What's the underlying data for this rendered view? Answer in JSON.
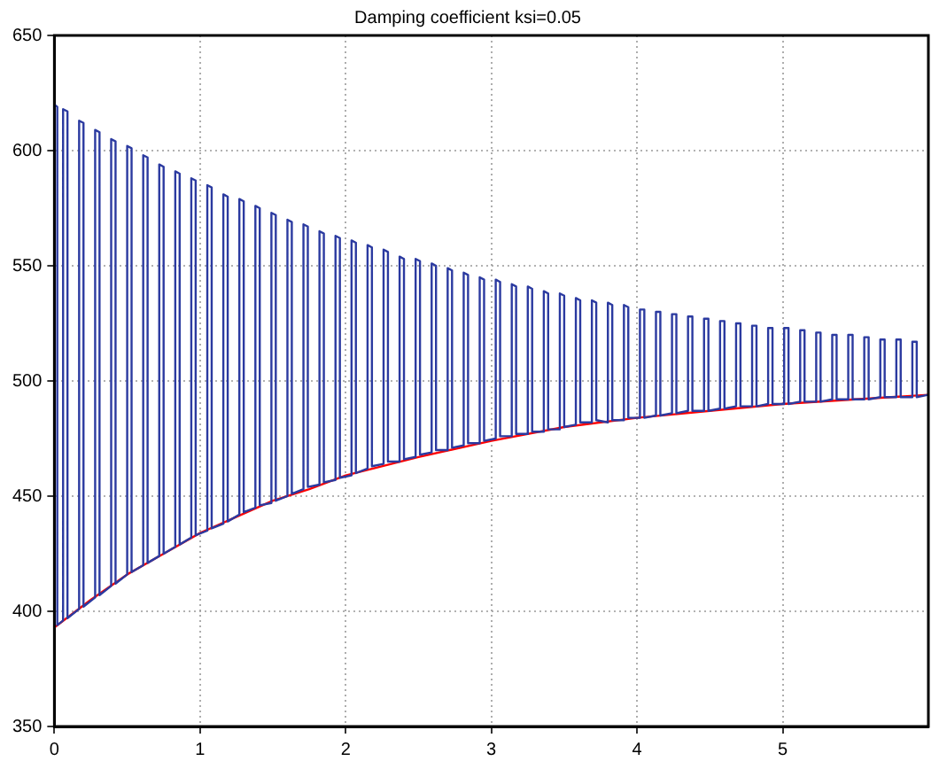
{
  "chart_data": {
    "type": "line",
    "title": "Damping coefficient ksi=0.05",
    "xlim": [
      0,
      6
    ],
    "xticks": [
      0,
      1,
      2,
      3,
      4,
      5
    ],
    "ylim": [
      350,
      650
    ],
    "yticks": [
      350,
      400,
      450,
      500,
      550,
      600,
      650
    ],
    "grid": true,
    "legend": false,
    "marker": "none",
    "line_style": "solid",
    "series": [
      {
        "color": "#2b3aa0",
        "x": [
          0,
          0,
          0.02,
          0.02,
          0.06,
          0.06,
          0.09,
          0.09,
          0.17,
          0.17,
          0.2,
          0.2,
          0.28,
          0.28,
          0.31,
          0.31,
          0.39,
          0.39,
          0.42,
          0.42,
          0.5,
          0.5,
          0.53,
          0.53,
          0.61,
          0.61,
          0.64,
          0.64,
          0.72,
          0.72,
          0.75,
          0.75,
          0.83,
          0.83,
          0.86,
          0.86,
          0.94,
          0.94,
          0.97,
          0.97,
          1.05,
          1.05,
          1.08,
          1.08,
          1.16,
          1.16,
          1.19,
          1.19,
          1.27,
          1.27,
          1.3,
          1.3,
          1.38,
          1.38,
          1.41,
          1.41,
          1.49,
          1.49,
          1.52,
          1.52,
          1.6,
          1.6,
          1.63,
          1.63,
          1.71,
          1.71,
          1.74,
          1.74,
          1.82,
          1.82,
          1.85,
          1.85,
          1.93,
          1.93,
          1.96,
          1.96,
          2.04,
          2.04,
          2.07,
          2.07,
          2.15,
          2.15,
          2.18,
          2.18,
          2.26,
          2.26,
          2.29,
          2.29,
          2.37,
          2.37,
          2.4,
          2.4,
          2.48,
          2.48,
          2.51,
          2.51,
          2.59,
          2.59,
          2.62,
          2.62,
          2.7,
          2.7,
          2.73,
          2.73,
          2.81,
          2.81,
          2.84,
          2.84,
          2.92,
          2.92,
          2.95,
          2.95,
          3.03,
          3.03,
          3.06,
          3.06,
          3.14,
          3.14,
          3.17,
          3.17,
          3.25,
          3.25,
          3.28,
          3.28,
          3.36,
          3.36,
          3.39,
          3.39,
          3.47,
          3.47,
          3.5,
          3.5,
          3.58,
          3.58,
          3.61,
          3.61,
          3.69,
          3.69,
          3.72,
          3.72,
          3.8,
          3.8,
          3.83,
          3.83,
          3.91,
          3.91,
          3.94,
          3.94,
          4.02,
          4.02,
          4.05,
          4.05,
          4.13,
          4.13,
          4.16,
          4.16,
          4.24,
          4.24,
          4.27,
          4.27,
          4.35,
          4.35,
          4.38,
          4.38,
          4.46,
          4.46,
          4.49,
          4.49,
          4.57,
          4.57,
          4.6,
          4.6,
          4.68,
          4.68,
          4.71,
          4.71,
          4.79,
          4.79,
          4.82,
          4.82,
          4.9,
          4.9,
          4.93,
          4.93,
          5.01,
          5.01,
          5.04,
          5.04,
          5.12,
          5.12,
          5.15,
          5.15,
          5.23,
          5.23,
          5.26,
          5.26,
          5.34,
          5.34,
          5.37,
          5.37,
          5.45,
          5.45,
          5.48,
          5.48,
          5.56,
          5.56,
          5.59,
          5.59,
          5.67,
          5.67,
          5.7,
          5.7,
          5.78,
          5.78,
          5.81,
          5.81,
          5.89,
          5.89,
          5.92,
          5.92,
          6
        ],
        "values": [
          393,
          620,
          619,
          394,
          396,
          618,
          617,
          397,
          401,
          613,
          612,
          402,
          406,
          609,
          608,
          407,
          411,
          605,
          604,
          412,
          416,
          602,
          601,
          417,
          420,
          598,
          597,
          421,
          424,
          594,
          593,
          425,
          428,
          591,
          590,
          429,
          432,
          588,
          587,
          433,
          435,
          585,
          584,
          436,
          438,
          581,
          580,
          439,
          442,
          579,
          578,
          443,
          445,
          576,
          575,
          446,
          447,
          573,
          572,
          448,
          450,
          570,
          569,
          451,
          453,
          568,
          567,
          454,
          455,
          565,
          564,
          456,
          457,
          563,
          562,
          458,
          459,
          561,
          560,
          460,
          462,
          559,
          558,
          463,
          464,
          557,
          556,
          465,
          465,
          554,
          553,
          466,
          467,
          553,
          552,
          468,
          469,
          551,
          550,
          470,
          470,
          549,
          548,
          471,
          472,
          547,
          546,
          473,
          473,
          545,
          544,
          474,
          475,
          544,
          543,
          476,
          476,
          542,
          541,
          477,
          477,
          541,
          540,
          478,
          478,
          539,
          538,
          479,
          479,
          538,
          537,
          480,
          481,
          536,
          535,
          482,
          482,
          535,
          534,
          483,
          482,
          534,
          533,
          483,
          483,
          533,
          532,
          484,
          484,
          531,
          531,
          484,
          485,
          530,
          530,
          485,
          486,
          529,
          529,
          486,
          487,
          528,
          528,
          487,
          487,
          527,
          527,
          487,
          488,
          526,
          526,
          488,
          489,
          525,
          525,
          489,
          489,
          524,
          524,
          489,
          490,
          523,
          523,
          490,
          490,
          523,
          523,
          490,
          491,
          522,
          522,
          491,
          491,
          521,
          521,
          491,
          492,
          520,
          520,
          492,
          492,
          520,
          520,
          492,
          492,
          519,
          519,
          492,
          493,
          518,
          518,
          493,
          493,
          518,
          518,
          493,
          493,
          517,
          517,
          493,
          494
        ]
      },
      {
        "color": "#ff0000",
        "x": [
          0,
          0.25,
          0.5,
          0.75,
          1,
          1.25,
          1.5,
          1.75,
          2,
          2.5,
          3,
          3.5,
          4,
          4.5,
          5,
          5.5,
          6
        ],
        "values": [
          393,
          405,
          416,
          425,
          434,
          441,
          448,
          453,
          459,
          467,
          474,
          480,
          484,
          487,
          490,
          492,
          494
        ]
      }
    ]
  }
}
